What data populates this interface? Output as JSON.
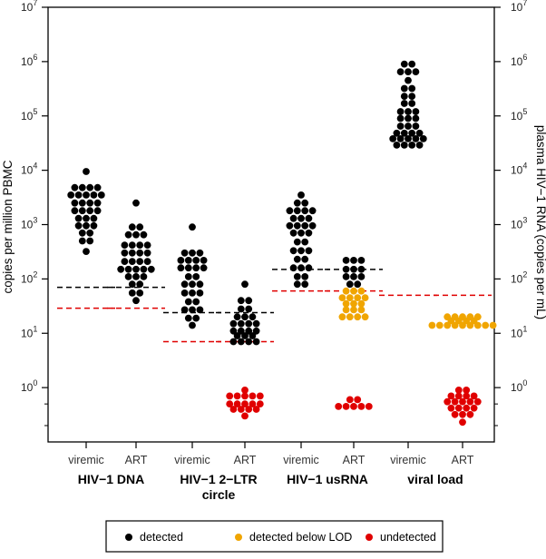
{
  "chart_data": {
    "type": "scatter",
    "y_scale": "log",
    "ylim": [
      0.1,
      10000000
    ],
    "yticks": [
      {
        "value": 1,
        "label": "10",
        "exp": "0"
      },
      {
        "value": 10,
        "label": "10",
        "exp": "1"
      },
      {
        "value": 100,
        "label": "10",
        "exp": "2"
      },
      {
        "value": 1000,
        "label": "10",
        "exp": "3"
      },
      {
        "value": 10000,
        "label": "10",
        "exp": "4"
      },
      {
        "value": 100000,
        "label": "10",
        "exp": "5"
      },
      {
        "value": 1000000,
        "label": "10",
        "exp": "6"
      },
      {
        "value": 10000000,
        "label": "10",
        "exp": "7"
      }
    ],
    "ylabel_left": "copies per million PBMC",
    "ylabel_right": "plasma HIV−1 RNA (copies per mL)",
    "colors": {
      "detected": "#000000",
      "below_lod": "#f0a500",
      "undetected": "#e00000"
    },
    "groups": [
      {
        "label_lines": [
          "HIV−1 DNA"
        ],
        "categories": [
          "viremic",
          "ART"
        ]
      },
      {
        "label_lines": [
          "HIV−1 2−LTR",
          "circle"
        ],
        "categories": [
          "viremic",
          "ART"
        ]
      },
      {
        "label_lines": [
          "HIV−1 usRNA"
        ],
        "categories": [
          "viremic",
          "ART"
        ]
      },
      {
        "label_lines": [
          "viral load"
        ],
        "categories": [
          "viremic",
          "ART"
        ]
      }
    ],
    "columns": [
      {
        "group": 0,
        "category": "viremic",
        "detection_limit": 29,
        "median": 70,
        "points": [
          {
            "value": 9500,
            "status": "detected"
          },
          {
            "value": 4800,
            "status": "detected",
            "count": 4
          },
          {
            "value": 3500,
            "status": "detected",
            "count": 5
          },
          {
            "value": 2500,
            "status": "detected",
            "count": 4
          },
          {
            "value": 1800,
            "status": "detected",
            "count": 4
          },
          {
            "value": 1300,
            "status": "detected",
            "count": 3
          },
          {
            "value": 950,
            "status": "detected",
            "count": 3
          },
          {
            "value": 700,
            "status": "detected",
            "count": 2
          },
          {
            "value": 500,
            "status": "detected",
            "count": 2
          },
          {
            "value": 320,
            "status": "detected"
          }
        ]
      },
      {
        "group": 0,
        "category": "ART",
        "detection_limit": 29,
        "median": 70,
        "points": [
          {
            "value": 2500,
            "status": "detected"
          },
          {
            "value": 900,
            "status": "detected",
            "count": 2
          },
          {
            "value": 650,
            "status": "detected",
            "count": 3
          },
          {
            "value": 420,
            "status": "detected",
            "count": 4
          },
          {
            "value": 300,
            "status": "detected",
            "count": 4
          },
          {
            "value": 210,
            "status": "detected",
            "count": 4
          },
          {
            "value": 150,
            "status": "detected",
            "count": 5
          },
          {
            "value": 110,
            "status": "detected",
            "count": 3
          },
          {
            "value": 80,
            "status": "detected",
            "count": 2
          },
          {
            "value": 55,
            "status": "detected",
            "count": 2
          },
          {
            "value": 40,
            "status": "detected"
          }
        ]
      },
      {
        "group": 1,
        "category": "viremic",
        "detection_limit": 7,
        "median": 24,
        "points": [
          {
            "value": 900,
            "status": "detected"
          },
          {
            "value": 300,
            "status": "detected",
            "count": 3
          },
          {
            "value": 220,
            "status": "detected",
            "count": 4
          },
          {
            "value": 160,
            "status": "detected",
            "count": 4
          },
          {
            "value": 110,
            "status": "detected",
            "count": 2
          },
          {
            "value": 80,
            "status": "detected",
            "count": 3
          },
          {
            "value": 55,
            "status": "detected",
            "count": 3
          },
          {
            "value": 38,
            "status": "detected",
            "count": 2
          },
          {
            "value": 27,
            "status": "detected",
            "count": 3
          },
          {
            "value": 19,
            "status": "detected",
            "count": 2
          },
          {
            "value": 14,
            "status": "detected"
          }
        ]
      },
      {
        "group": 1,
        "category": "ART",
        "detection_limit": 7,
        "median": 24,
        "points": [
          {
            "value": 80,
            "status": "detected"
          },
          {
            "value": 40,
            "status": "detected",
            "count": 2
          },
          {
            "value": 28,
            "status": "detected",
            "count": 2
          },
          {
            "value": 20,
            "status": "detected",
            "count": 3
          },
          {
            "value": 15,
            "status": "detected",
            "count": 4
          },
          {
            "value": 11,
            "status": "detected",
            "count": 4
          },
          {
            "value": 9,
            "status": "detected",
            "count": 3
          },
          {
            "value": 7,
            "status": "detected",
            "count": 4
          },
          {
            "value": 0.9,
            "status": "undetected"
          },
          {
            "value": 0.7,
            "status": "undetected",
            "count": 5
          },
          {
            "value": 0.5,
            "status": "undetected",
            "count": 5
          },
          {
            "value": 0.4,
            "status": "undetected",
            "count": 4
          },
          {
            "value": 0.3,
            "status": "undetected"
          }
        ]
      },
      {
        "group": 2,
        "category": "viremic",
        "detection_limit": 60,
        "median": 150,
        "points": [
          {
            "value": 3500,
            "status": "detected"
          },
          {
            "value": 2500,
            "status": "detected",
            "count": 2
          },
          {
            "value": 1800,
            "status": "detected",
            "count": 4
          },
          {
            "value": 1300,
            "status": "detected",
            "count": 3
          },
          {
            "value": 950,
            "status": "detected",
            "count": 4
          },
          {
            "value": 700,
            "status": "detected",
            "count": 3
          },
          {
            "value": 480,
            "status": "detected",
            "count": 2
          },
          {
            "value": 330,
            "status": "detected",
            "count": 3
          },
          {
            "value": 230,
            "status": "detected",
            "count": 2
          },
          {
            "value": 160,
            "status": "detected",
            "count": 3
          },
          {
            "value": 110,
            "status": "detected",
            "count": 2
          },
          {
            "value": 80,
            "status": "detected",
            "count": 2
          }
        ]
      },
      {
        "group": 2,
        "category": "ART",
        "detection_limit": 60,
        "median": 150,
        "points": [
          {
            "value": 220,
            "status": "detected",
            "count": 3
          },
          {
            "value": 150,
            "status": "detected",
            "count": 3
          },
          {
            "value": 110,
            "status": "detected",
            "count": 3
          },
          {
            "value": 80,
            "status": "detected",
            "count": 2
          },
          {
            "value": 60,
            "status": "below_lod",
            "count": 3
          },
          {
            "value": 45,
            "status": "below_lod",
            "count": 4
          },
          {
            "value": 35,
            "status": "below_lod",
            "count": 3
          },
          {
            "value": 27,
            "status": "below_lod",
            "count": 3
          },
          {
            "value": 20,
            "status": "below_lod",
            "count": 4
          },
          {
            "value": 0.6,
            "status": "undetected",
            "count": 2
          },
          {
            "value": 0.45,
            "status": "undetected",
            "count": 5
          }
        ]
      },
      {
        "group": 3,
        "category": "viremic",
        "detection_limit": 50,
        "median": null,
        "points": [
          {
            "value": 900000,
            "status": "detected",
            "count": 2
          },
          {
            "value": 650000,
            "status": "detected",
            "count": 3
          },
          {
            "value": 450000,
            "status": "detected"
          },
          {
            "value": 320000,
            "status": "detected",
            "count": 2
          },
          {
            "value": 230000,
            "status": "detected",
            "count": 2
          },
          {
            "value": 170000,
            "status": "detected",
            "count": 2
          },
          {
            "value": 120000,
            "status": "detected",
            "count": 3
          },
          {
            "value": 90000,
            "status": "detected",
            "count": 3
          },
          {
            "value": 65000,
            "status": "detected",
            "count": 3
          },
          {
            "value": 48000,
            "status": "detected",
            "count": 4
          },
          {
            "value": 38000,
            "status": "detected",
            "count": 5
          },
          {
            "value": 29000,
            "status": "detected",
            "count": 4
          }
        ]
      },
      {
        "group": 3,
        "category": "ART",
        "detection_limit": 50,
        "median": null,
        "points": [
          {
            "value": 20,
            "status": "below_lod",
            "count": 5
          },
          {
            "value": 17,
            "status": "below_lod",
            "count": 4
          },
          {
            "value": 14,
            "status": "below_lod",
            "count": 9
          },
          {
            "value": 0.9,
            "status": "undetected",
            "count": 2
          },
          {
            "value": 0.7,
            "status": "undetected",
            "count": 4
          },
          {
            "value": 0.55,
            "status": "undetected",
            "count": 5
          },
          {
            "value": 0.42,
            "status": "undetected",
            "count": 4
          },
          {
            "value": 0.32,
            "status": "undetected",
            "count": 3
          },
          {
            "value": 0.23,
            "status": "undetected"
          }
        ]
      }
    ],
    "legend": {
      "position": "bottom",
      "items": [
        {
          "key": "detected",
          "label": "detected"
        },
        {
          "key": "below_lod",
          "label": "detected below LOD"
        },
        {
          "key": "undetected",
          "label": "undetected"
        }
      ]
    },
    "reference_line_colors": {
      "median": "#000000",
      "detection_limit": "#e00000"
    }
  }
}
